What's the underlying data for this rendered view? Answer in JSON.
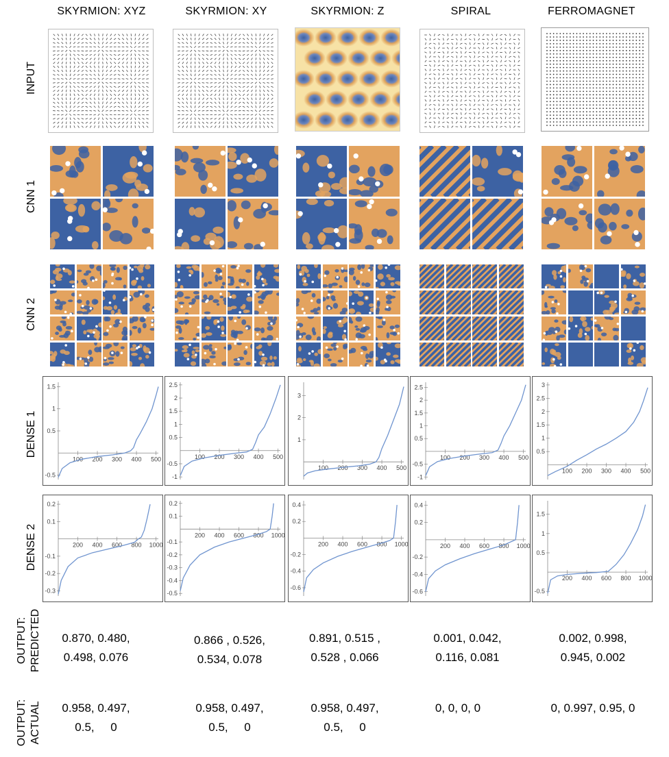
{
  "columns": [
    "SKYRMION: XYZ",
    "SKYRMION: XY",
    "SKYRMION: Z",
    "SPIRAL",
    "FERROMAGNET"
  ],
  "rows": {
    "input": "INPUT",
    "cnn1": "CNN 1",
    "cnn2": "CNN 2",
    "dense1": "DENSE 1",
    "dense2": "DENSE 2",
    "predicted": [
      "OUTPUT:",
      "PREDICTED"
    ],
    "actual": [
      "OUTPUT:",
      "ACTUAL"
    ]
  },
  "colors": {
    "orange": "#e3a35f",
    "blue": "#3d62a3",
    "cream": "#f7e2a6",
    "line": "#6f94cf"
  },
  "predicted": [
    [
      "0.870, 0.480,",
      "0.498, 0.076"
    ],
    [
      "0.866 , 0.526,",
      "0.534, 0.078"
    ],
    [
      "0.891, 0.515 ,",
      "0.528 , 0.066"
    ],
    [
      "0.001, 0.042,",
      "0.116, 0.081"
    ],
    [
      "0.002, 0.998,",
      "0.945, 0.002"
    ]
  ],
  "actual": [
    [
      "0.958, 0.497,",
      "0.5,     0"
    ],
    [
      "0.958, 0.497,",
      "0.5,     0"
    ],
    [
      "0.958, 0.497,",
      "0.5,     0"
    ],
    [
      "0, 0, 0, 0",
      ""
    ],
    [
      "0, 0.997, 0.95, 0",
      ""
    ]
  ],
  "chart_data": [
    {
      "type": "line",
      "row": "DENSE 1",
      "panel": "SKYRMION: XYZ",
      "xlim": [
        0,
        512
      ],
      "ylim": [
        -0.6,
        1.6
      ],
      "x": [
        0,
        20,
        60,
        120,
        200,
        280,
        340,
        370,
        385,
        400,
        420,
        450,
        480,
        500,
        512
      ],
      "y": [
        -0.55,
        -0.35,
        -0.22,
        -0.14,
        -0.08,
        -0.04,
        0.0,
        0.05,
        0.12,
        0.3,
        0.45,
        0.7,
        1.0,
        1.3,
        1.5
      ],
      "xticks": [
        100,
        200,
        300,
        400,
        500
      ],
      "yticks": [
        -0.5,
        0.5,
        1.0,
        1.5
      ]
    },
    {
      "type": "line",
      "row": "DENSE 1",
      "panel": "SKYRMION: XY",
      "xlim": [
        0,
        512
      ],
      "ylim": [
        -1.1,
        2.6
      ],
      "x": [
        0,
        20,
        60,
        120,
        200,
        280,
        340,
        370,
        385,
        400,
        430,
        460,
        490,
        512
      ],
      "y": [
        -0.95,
        -0.6,
        -0.4,
        -0.28,
        -0.18,
        -0.1,
        -0.05,
        0.05,
        0.3,
        0.6,
        0.9,
        1.4,
        2.0,
        2.5
      ],
      "xticks": [
        100,
        200,
        300,
        400,
        500
      ],
      "yticks": [
        -1.0,
        -0.5,
        0.5,
        1.0,
        1.5,
        2.0,
        2.5
      ]
    },
    {
      "type": "line",
      "row": "DENSE 1",
      "panel": "SKYRMION: Z",
      "xlim": [
        0,
        512
      ],
      "ylim": [
        -0.8,
        3.6
      ],
      "x": [
        0,
        20,
        60,
        120,
        200,
        280,
        340,
        370,
        385,
        400,
        430,
        460,
        490,
        512
      ],
      "y": [
        -0.65,
        -0.5,
        -0.4,
        -0.33,
        -0.25,
        -0.18,
        -0.1,
        0.0,
        0.2,
        0.6,
        1.2,
        1.9,
        2.6,
        3.4
      ],
      "xticks": [
        100,
        200,
        300,
        400,
        500
      ],
      "yticks": [
        1,
        2,
        3
      ]
    },
    {
      "type": "line",
      "row": "DENSE 1",
      "panel": "SPIRAL",
      "xlim": [
        0,
        512
      ],
      "ylim": [
        -1.1,
        2.7
      ],
      "x": [
        0,
        20,
        60,
        120,
        200,
        280,
        340,
        370,
        385,
        400,
        430,
        460,
        490,
        512
      ],
      "y": [
        -0.95,
        -0.6,
        -0.4,
        -0.28,
        -0.18,
        -0.1,
        -0.05,
        0.05,
        0.3,
        0.6,
        1.0,
        1.5,
        2.0,
        2.6
      ],
      "xticks": [
        100,
        200,
        300,
        400,
        500
      ],
      "yticks": [
        -1.0,
        -0.5,
        0.5,
        1.0,
        1.5,
        2.0,
        2.5
      ]
    },
    {
      "type": "line",
      "row": "DENSE 1",
      "panel": "FERROMAGNET",
      "xlim": [
        0,
        512
      ],
      "ylim": [
        -0.55,
        3.1
      ],
      "x": [
        0,
        40,
        100,
        150,
        200,
        250,
        300,
        350,
        400,
        440,
        470,
        490,
        512
      ],
      "y": [
        -0.4,
        -0.25,
        -0.05,
        0.18,
        0.38,
        0.6,
        0.78,
        1.0,
        1.25,
        1.6,
        2.0,
        2.4,
        2.9
      ],
      "xticks": [
        100,
        200,
        300,
        400,
        500
      ],
      "yticks": [
        0.5,
        1.0,
        1.5,
        2.0,
        2.5,
        3.0
      ]
    },
    {
      "type": "line",
      "row": "DENSE 2",
      "panel": "SKYRMION: XYZ",
      "xlim": [
        0,
        1024
      ],
      "ylim": [
        -0.33,
        0.22
      ],
      "x": [
        0,
        30,
        100,
        200,
        350,
        500,
        650,
        780,
        820,
        850,
        880,
        910,
        940
      ],
      "y": [
        -0.32,
        -0.24,
        -0.16,
        -0.11,
        -0.08,
        -0.06,
        -0.04,
        -0.02,
        0.0,
        0.01,
        0.05,
        0.12,
        0.2
      ],
      "xticks": [
        200,
        400,
        600,
        800,
        1000
      ],
      "yticks": [
        -0.3,
        -0.2,
        -0.1,
        0.1,
        0.2
      ]
    },
    {
      "type": "line",
      "row": "DENSE 2",
      "panel": "SKYRMION: XY",
      "xlim": [
        0,
        1024
      ],
      "ylim": [
        -0.52,
        0.22
      ],
      "x": [
        0,
        30,
        100,
        200,
        350,
        500,
        650,
        800,
        880,
        920,
        940,
        955
      ],
      "y": [
        -0.48,
        -0.38,
        -0.28,
        -0.2,
        -0.14,
        -0.1,
        -0.07,
        -0.04,
        -0.02,
        0.0,
        0.1,
        0.2
      ],
      "xticks": [
        200,
        400,
        600,
        800,
        1000
      ],
      "yticks": [
        -0.5,
        -0.4,
        -0.3,
        -0.2,
        -0.1,
        0.1,
        0.2
      ]
    },
    {
      "type": "line",
      "row": "DENSE 2",
      "panel": "SKYRMION: Z",
      "xlim": [
        0,
        1024
      ],
      "ylim": [
        -0.7,
        0.45
      ],
      "x": [
        0,
        30,
        100,
        200,
        350,
        500,
        650,
        800,
        880,
        920,
        940,
        955
      ],
      "y": [
        -0.65,
        -0.48,
        -0.38,
        -0.3,
        -0.22,
        -0.16,
        -0.11,
        -0.06,
        -0.03,
        0.0,
        0.2,
        0.4
      ],
      "xticks": [
        200,
        400,
        600,
        800,
        1000
      ],
      "yticks": [
        -0.6,
        -0.4,
        -0.2,
        0.2,
        0.4
      ]
    },
    {
      "type": "line",
      "row": "DENSE 2",
      "panel": "SPIRAL",
      "xlim": [
        0,
        1024
      ],
      "ylim": [
        -0.65,
        0.45
      ],
      "x": [
        0,
        30,
        100,
        200,
        350,
        500,
        650,
        800,
        880,
        920,
        940,
        955
      ],
      "y": [
        -0.6,
        -0.45,
        -0.36,
        -0.29,
        -0.22,
        -0.16,
        -0.11,
        -0.06,
        -0.02,
        0.0,
        0.2,
        0.4
      ],
      "xticks": [
        200,
        400,
        600,
        800,
        1000
      ],
      "yticks": [
        -0.6,
        -0.4,
        -0.2,
        0.2,
        0.4
      ]
    },
    {
      "type": "line",
      "row": "DENSE 2",
      "panel": "FERROMAGNET",
      "xlim": [
        0,
        1024
      ],
      "ylim": [
        -0.62,
        1.85
      ],
      "x": [
        0,
        30,
        100,
        200,
        350,
        500,
        620,
        700,
        780,
        850,
        920,
        970,
        1000
      ],
      "y": [
        -0.55,
        -0.2,
        -0.1,
        -0.06,
        -0.03,
        -0.01,
        0.02,
        0.2,
        0.45,
        0.75,
        1.1,
        1.45,
        1.75
      ],
      "xticks": [
        200,
        400,
        600,
        800,
        1000
      ],
      "yticks": [
        -0.5,
        0.5,
        1.0,
        1.5
      ]
    }
  ]
}
